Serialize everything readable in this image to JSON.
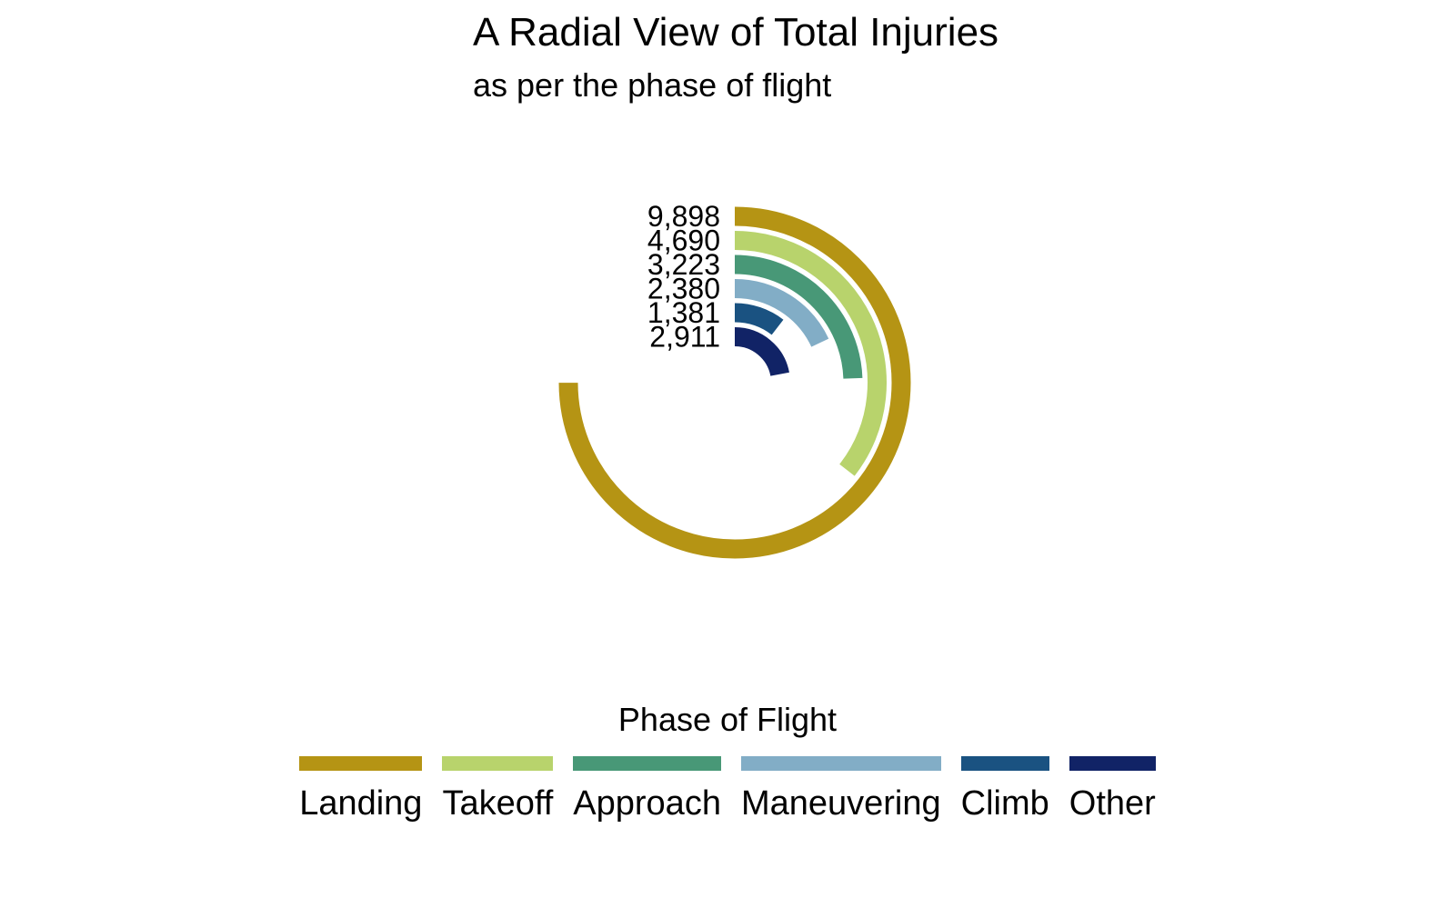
{
  "title": "A Radial View of Total Injuries",
  "subtitle": "as per the phase of flight",
  "chart_data": {
    "type": "radial-bar",
    "title": "A Radial View of Total Injuries",
    "subtitle": "as per the phase of flight",
    "legend_title": "Phase of Flight",
    "legend_position": "bottom",
    "max_value": 13200,
    "categories": [
      "Landing",
      "Takeoff",
      "Approach",
      "Maneuvering",
      "Climb",
      "Other"
    ],
    "values": [
      9898,
      4690,
      3223,
      2380,
      1381,
      2911
    ],
    "value_labels": [
      "9,898",
      "4,690",
      "3,223",
      "2,380",
      "1,381",
      "2,911"
    ],
    "colors": [
      "#B59414",
      "#B8D36C",
      "#489877",
      "#82ADC6",
      "#1A5281",
      "#112366"
    ],
    "grid": false
  }
}
